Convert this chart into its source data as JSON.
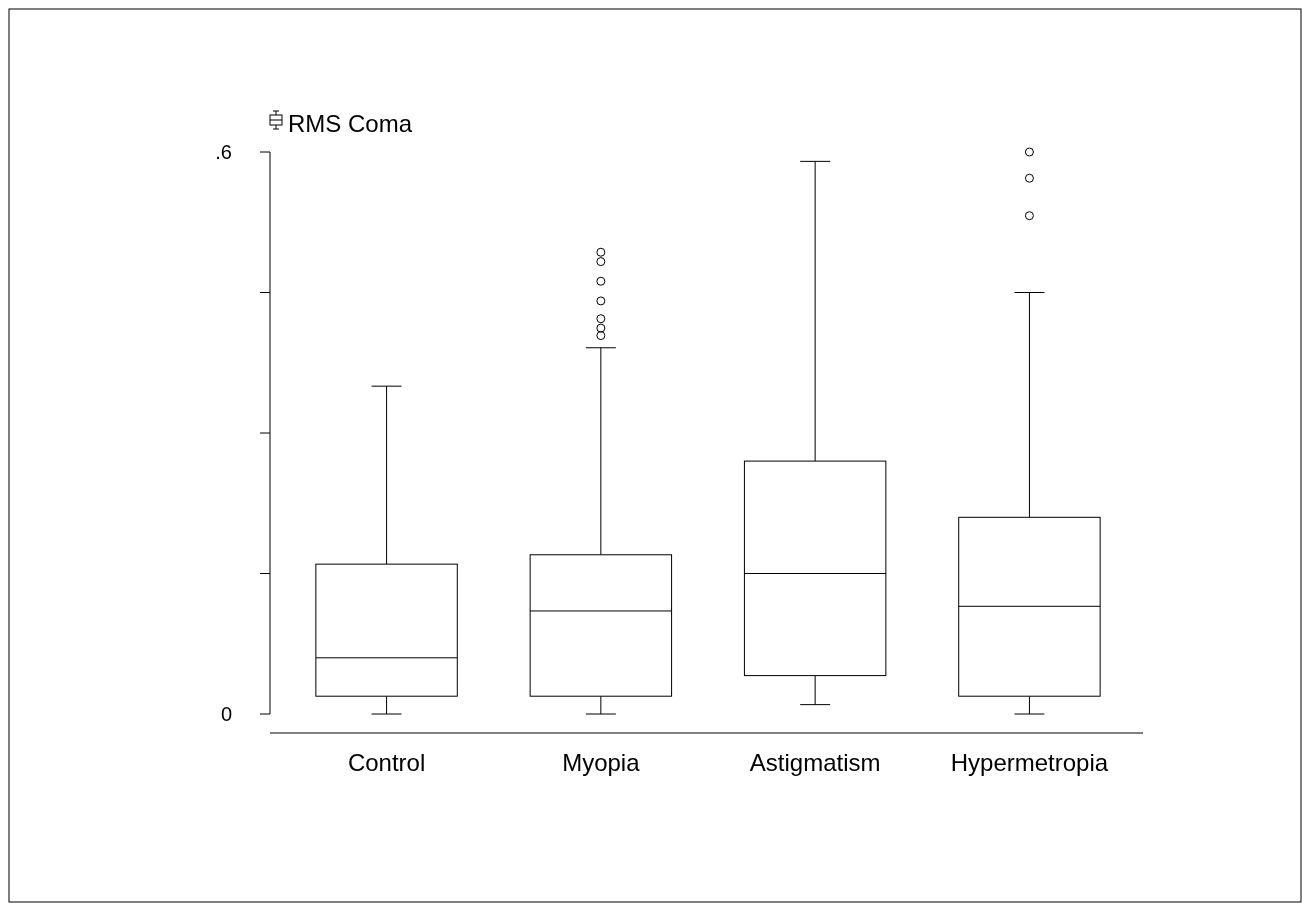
{
  "chart_data": {
    "type": "box",
    "categories": [
      "Control",
      "Myopia",
      "Astigmatism",
      "Hypermetropia"
    ],
    "series": [
      {
        "name": "RMS Coma",
        "color": "#ffffff",
        "boxes": [
          {
            "low": 0,
            "q1": 0.019,
            "median": 0.06,
            "q3": 0.16,
            "high": 0.35
          },
          {
            "low": 0,
            "q1": 0.019,
            "median": 0.11,
            "q3": 0.17,
            "high": 0.391,
            "outliers": [
              0.404,
              0.412,
              0.422,
              0.441,
              0.462,
              0.483,
              0.493
            ]
          },
          {
            "low": 0.01,
            "q1": 0.041,
            "median": 0.15,
            "q3": 0.27,
            "high": 0.59
          },
          {
            "low": 0,
            "q1": 0.019,
            "median": 0.115,
            "q3": 0.21,
            "high": 0.45,
            "outliers": [
              0.532,
              0.572,
              0.6
            ]
          }
        ]
      }
    ],
    "ylim": [
      0,
      0.6
    ],
    "yticks": [
      0,
      {
        "value": 0.15,
        "label": null
      },
      {
        "value": 0.3,
        "label": null
      },
      {
        "value": 0.45,
        "label": null
      },
      {
        "value": 0.6,
        "label": ".6"
      }
    ],
    "legend": "top left",
    "grid": false
  }
}
